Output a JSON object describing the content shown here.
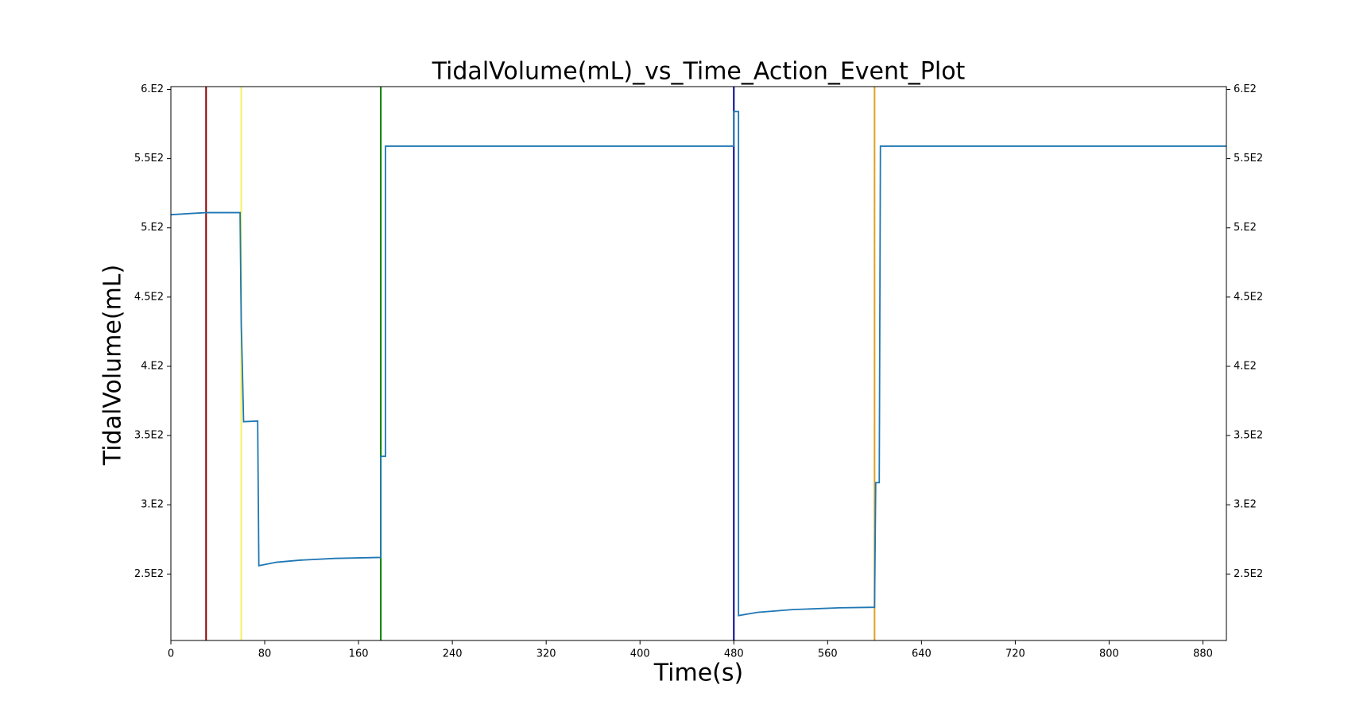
{
  "chart_data": {
    "type": "line",
    "title": "TidalVolume(mL)_vs_Time_Action_Event_Plot",
    "xlabel": "Time(s)",
    "ylabel": "TidalVolume(mL)",
    "x": [
      0,
      15,
      30,
      59,
      60,
      61,
      62,
      74,
      75,
      90,
      110,
      140,
      179,
      179,
      183,
      183,
      480,
      480,
      484,
      484,
      500,
      530,
      570,
      600,
      601,
      604,
      605,
      900
    ],
    "series": [
      {
        "color": "#1f77b4",
        "values": [
          509.5,
          510.3,
          511,
          511,
          430,
          397,
          360,
          360.5,
          256,
          258.5,
          260,
          261.3,
          262,
          335,
          335,
          559,
          559,
          584,
          584,
          220,
          222.3,
          224.3,
          225.6,
          226,
          316,
          316,
          559,
          559
        ]
      }
    ],
    "events": [
      {
        "x": 30,
        "color": "#8b0000"
      },
      {
        "x": 60,
        "color": "#f5f062"
      },
      {
        "x": 179,
        "color": "#008000"
      },
      {
        "x": 480,
        "color": "#00008b"
      },
      {
        "x": 600,
        "color": "#e0a020"
      }
    ],
    "xlim": [
      0,
      900
    ],
    "xticks": [
      0,
      80,
      160,
      240,
      320,
      400,
      480,
      560,
      640,
      720,
      800,
      880
    ],
    "ylim": [
      202,
      602
    ],
    "yticks": [
      {
        "value": 250,
        "label": "2.5E2"
      },
      {
        "value": 300,
        "label": "3.E2"
      },
      {
        "value": 350,
        "label": "3.5E2"
      },
      {
        "value": 400,
        "label": "4.E2"
      },
      {
        "value": 450,
        "label": "4.5E2"
      },
      {
        "value": 500,
        "label": "5.E2"
      },
      {
        "value": 550,
        "label": "5.5E2"
      },
      {
        "value": 600,
        "label": "6.E2"
      }
    ],
    "grid": false
  }
}
